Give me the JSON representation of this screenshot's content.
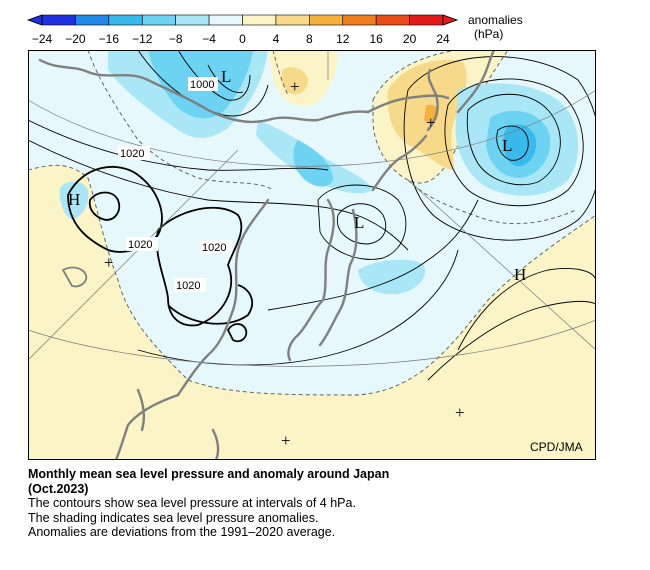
{
  "colorbar": {
    "ticks": [
      "−24",
      "−20",
      "−16",
      "−12",
      "−8",
      "−4",
      "0",
      "4",
      "8",
      "12",
      "16",
      "20",
      "24"
    ],
    "unit_line1": "anomalies",
    "unit_line2": "(hPa)",
    "colors": [
      "#1f30e0",
      "#1f8ae8",
      "#39b9ec",
      "#6cd3f2",
      "#a9e7f7",
      "#e6f8fc",
      "#fbf4c7",
      "#f7d98a",
      "#f5b13c",
      "#ef7d1e",
      "#ea4b16",
      "#e31a1a"
    ]
  },
  "map": {
    "credit": "CPD/JMA",
    "labels": {
      "low_north": "L",
      "low_east": "L",
      "low_japan": "L",
      "high_west": "H",
      "high_east": "H",
      "plus": "+"
    },
    "contour_labels": {
      "c1000": "1000",
      "c1020_a": "1020",
      "c1020_b": "1020",
      "c1020_c": "1020",
      "c1020_d": "1020"
    }
  },
  "caption": {
    "title_line1": "Monthly mean sea level pressure and anomaly around Japan",
    "title_line2": "(Oct.2023)",
    "line1": "The contours show sea level pressure at intervals of 4 hPa.",
    "line2": "The shading indicates sea level pressure anomalies.",
    "line3": "Anomalies are deviations from the 1991–2020 average."
  }
}
